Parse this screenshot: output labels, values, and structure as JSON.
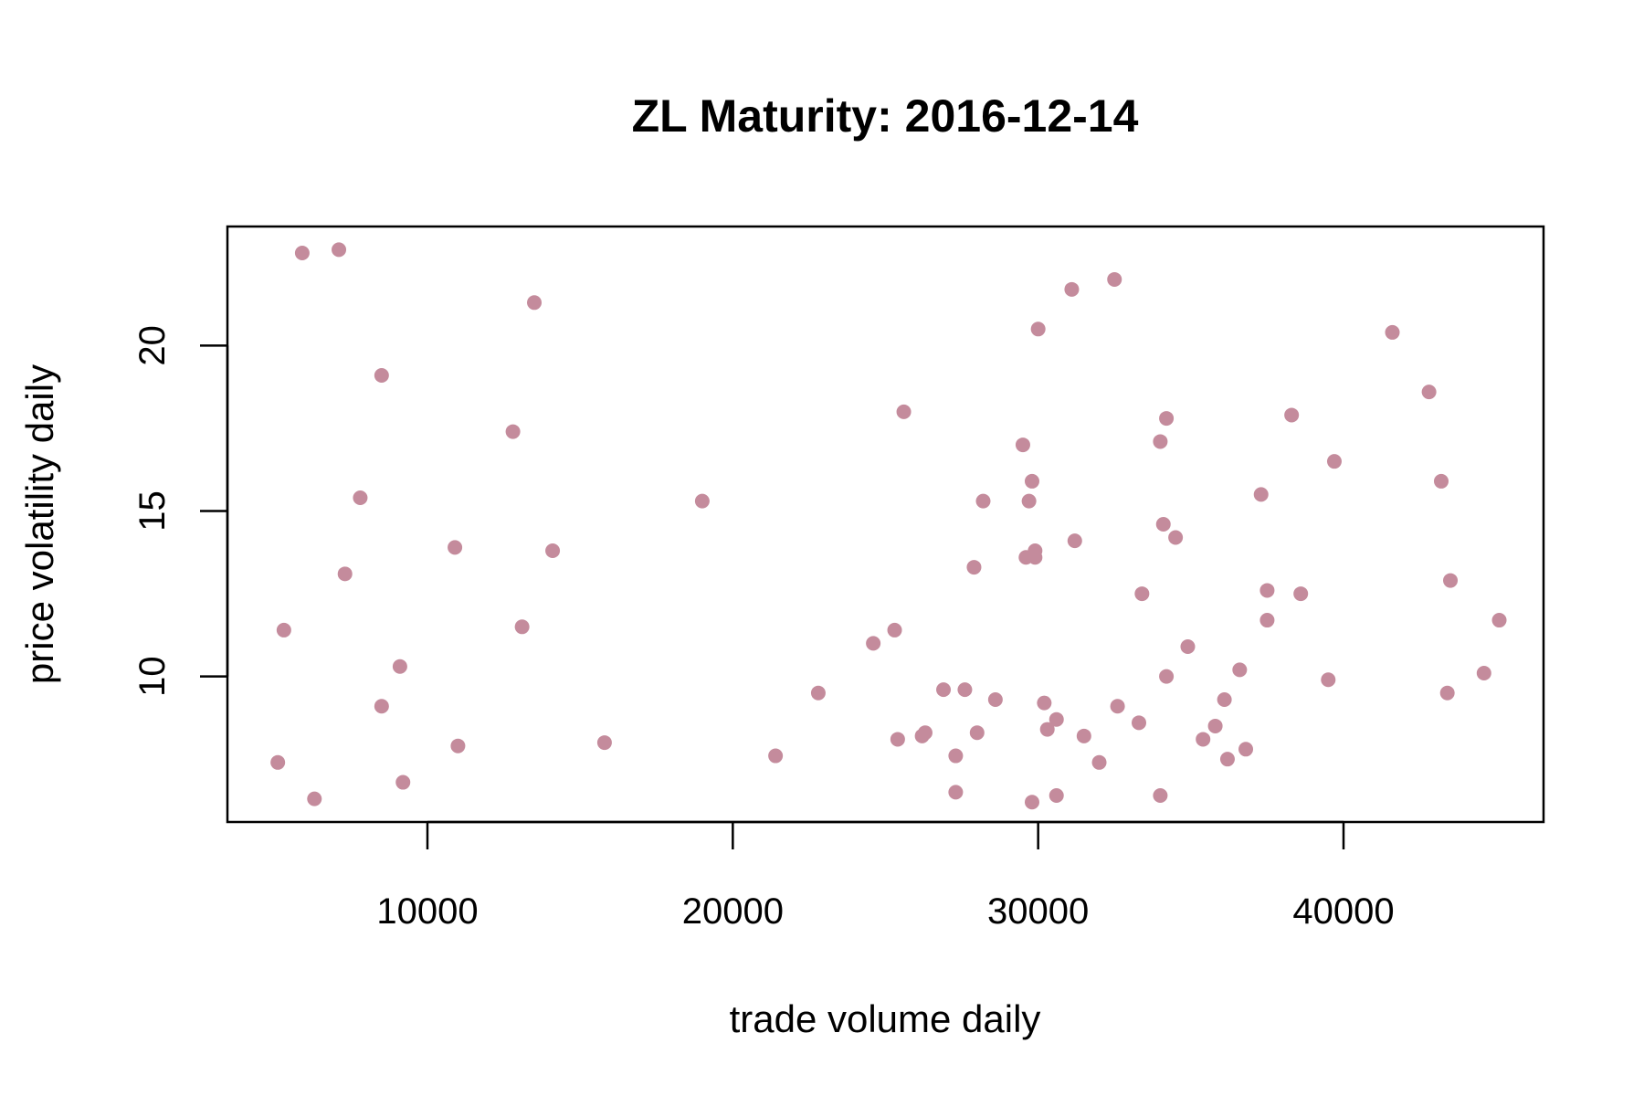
{
  "chart_data": {
    "type": "scatter",
    "title": "ZL Maturity: 2016-12-14",
    "xlabel": "trade volume daily",
    "ylabel": "price volatility daily",
    "xlim": [
      3450,
      46550
    ],
    "ylim": [
      5.6,
      23.6
    ],
    "xticks": [
      10000,
      20000,
      30000,
      40000
    ],
    "yticks": [
      10,
      15,
      20
    ],
    "point_color": "#c48b9c",
    "grid": false,
    "legend": "none",
    "points": [
      {
        "x": 5100,
        "y": 7.4
      },
      {
        "x": 5300,
        "y": 11.4
      },
      {
        "x": 5900,
        "y": 22.8
      },
      {
        "x": 6300,
        "y": 6.3
      },
      {
        "x": 7100,
        "y": 22.9
      },
      {
        "x": 7300,
        "y": 13.1
      },
      {
        "x": 7800,
        "y": 15.4
      },
      {
        "x": 8500,
        "y": 19.1
      },
      {
        "x": 8500,
        "y": 9.1
      },
      {
        "x": 9100,
        "y": 10.3
      },
      {
        "x": 9200,
        "y": 6.8
      },
      {
        "x": 10900,
        "y": 13.9
      },
      {
        "x": 11000,
        "y": 7.9
      },
      {
        "x": 12800,
        "y": 17.4
      },
      {
        "x": 13100,
        "y": 11.5
      },
      {
        "x": 13500,
        "y": 21.3
      },
      {
        "x": 14100,
        "y": 13.8
      },
      {
        "x": 15800,
        "y": 8.0
      },
      {
        "x": 19000,
        "y": 15.3
      },
      {
        "x": 21400,
        "y": 7.6
      },
      {
        "x": 22800,
        "y": 9.5
      },
      {
        "x": 24600,
        "y": 11.0
      },
      {
        "x": 25300,
        "y": 11.4
      },
      {
        "x": 25400,
        "y": 8.1
      },
      {
        "x": 25600,
        "y": 18.0
      },
      {
        "x": 26200,
        "y": 8.2
      },
      {
        "x": 26300,
        "y": 8.3
      },
      {
        "x": 26900,
        "y": 9.6
      },
      {
        "x": 27300,
        "y": 7.6
      },
      {
        "x": 27300,
        "y": 6.5
      },
      {
        "x": 27600,
        "y": 9.6
      },
      {
        "x": 27900,
        "y": 13.3
      },
      {
        "x": 28000,
        "y": 8.3
      },
      {
        "x": 28200,
        "y": 15.3
      },
      {
        "x": 28600,
        "y": 9.3
      },
      {
        "x": 29500,
        "y": 17.0
      },
      {
        "x": 29600,
        "y": 13.6
      },
      {
        "x": 29700,
        "y": 15.3
      },
      {
        "x": 29800,
        "y": 6.2
      },
      {
        "x": 29800,
        "y": 15.9
      },
      {
        "x": 29900,
        "y": 13.6
      },
      {
        "x": 29900,
        "y": 13.8
      },
      {
        "x": 30000,
        "y": 20.5
      },
      {
        "x": 30200,
        "y": 9.2
      },
      {
        "x": 30300,
        "y": 8.4
      },
      {
        "x": 30600,
        "y": 8.7
      },
      {
        "x": 30600,
        "y": 6.4
      },
      {
        "x": 31100,
        "y": 21.7
      },
      {
        "x": 31200,
        "y": 14.1
      },
      {
        "x": 31500,
        "y": 8.2
      },
      {
        "x": 32000,
        "y": 7.4
      },
      {
        "x": 32500,
        "y": 22.0
      },
      {
        "x": 32600,
        "y": 9.1
      },
      {
        "x": 33300,
        "y": 8.6
      },
      {
        "x": 33400,
        "y": 12.5
      },
      {
        "x": 34000,
        "y": 17.1
      },
      {
        "x": 34000,
        "y": 6.4
      },
      {
        "x": 34100,
        "y": 14.6
      },
      {
        "x": 34200,
        "y": 17.8
      },
      {
        "x": 34200,
        "y": 10.0
      },
      {
        "x": 34500,
        "y": 14.2
      },
      {
        "x": 34900,
        "y": 10.9
      },
      {
        "x": 35400,
        "y": 8.1
      },
      {
        "x": 35800,
        "y": 8.5
      },
      {
        "x": 36100,
        "y": 9.3
      },
      {
        "x": 36200,
        "y": 7.5
      },
      {
        "x": 36600,
        "y": 10.2
      },
      {
        "x": 36800,
        "y": 7.8
      },
      {
        "x": 37300,
        "y": 15.5
      },
      {
        "x": 37500,
        "y": 12.6
      },
      {
        "x": 37500,
        "y": 11.7
      },
      {
        "x": 38300,
        "y": 17.9
      },
      {
        "x": 38600,
        "y": 12.5
      },
      {
        "x": 39500,
        "y": 9.9
      },
      {
        "x": 39700,
        "y": 16.5
      },
      {
        "x": 41600,
        "y": 20.4
      },
      {
        "x": 42800,
        "y": 18.6
      },
      {
        "x": 43200,
        "y": 15.9
      },
      {
        "x": 43400,
        "y": 9.5
      },
      {
        "x": 43500,
        "y": 12.9
      },
      {
        "x": 44600,
        "y": 10.1
      },
      {
        "x": 45100,
        "y": 11.7
      }
    ]
  }
}
